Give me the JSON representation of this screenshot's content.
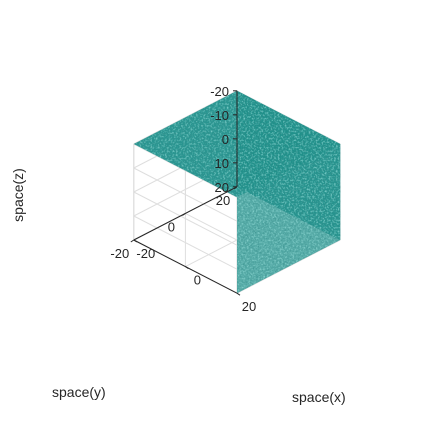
{
  "chart_data": {
    "type": "isosurface-3d",
    "title": "",
    "xlabel": "space(x)",
    "ylabel": "space(y)",
    "zlabel": "space(z)",
    "xlim": [
      -20,
      20
    ],
    "ylim": [
      -20,
      20
    ],
    "zlim": [
      -20,
      20
    ],
    "x_ticks": [
      "-20",
      "0",
      "20"
    ],
    "y_ticks": [
      "20",
      "0",
      "-20"
    ],
    "z_ticks": [
      "20",
      "10",
      "0",
      "-10",
      "-20"
    ],
    "grid": true,
    "surface": {
      "shape": "cube",
      "x_extent": [
        -20,
        20
      ],
      "y_extent": [
        -20,
        20
      ],
      "z_extent": [
        -20,
        20
      ],
      "color": "#1e8f8a",
      "highlight_color": "#5fd0c8",
      "shadow_color": "#0b4f4c"
    }
  }
}
